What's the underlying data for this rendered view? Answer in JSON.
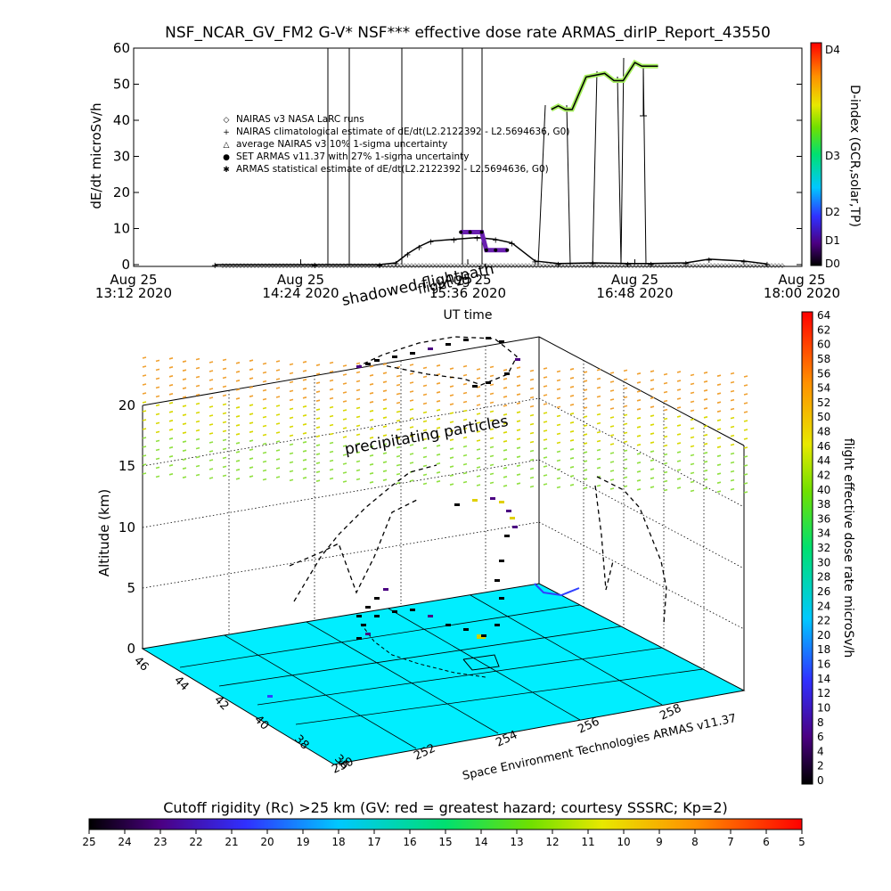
{
  "title": "NSF_NCAR_GV_FM2 G-V* NSF*** effective dose rate ARMAS_dirIP_Report_43550",
  "top_panel": {
    "ylabel": "dE/dt microSv/h",
    "xlabel": "UT time",
    "yticks": [
      "0",
      "10",
      "20",
      "30",
      "40",
      "50",
      "60"
    ],
    "xticks": [
      {
        "date": "Aug 25",
        "time": "13:12 2020"
      },
      {
        "date": "Aug 25",
        "time": "14:24 2020"
      },
      {
        "date": "Aug 25",
        "time": "15:36 2020"
      },
      {
        "date": "Aug 25",
        "time": "16:48 2020"
      },
      {
        "date": "Aug 25",
        "time": "18:00 2020"
      }
    ],
    "legend": [
      {
        "symbol": "◇",
        "text": "NAIRAS v3 NASA LaRC runs"
      },
      {
        "symbol": "+",
        "text": "NAIRAS climatological estimate of dE/dt(L2.2122392 - L2.5694636, G0)"
      },
      {
        "symbol": "△",
        "text": "average NAIRAS v3 10% 1-sigma uncertainty"
      },
      {
        "symbol": "●",
        "text": "SET ARMAS v11.37 with 27% 1-sigma uncertainty"
      },
      {
        "symbol": "✱",
        "text": "ARMAS statistical estimate of dE/dt(L2.2122392 - L2.5694636, G0)"
      }
    ],
    "dindex": {
      "label": "D-index (GCR,solar,TP)",
      "ticks": [
        "D4",
        "D3",
        "D2",
        "D1",
        "D0"
      ]
    }
  },
  "annotations": {
    "shadowed": "shadowed flightpath",
    "shadowed_overlap": "flight 25",
    "precipitating": "precipitating particles",
    "credit": "Space Environment Technologies ARMAS v11.37"
  },
  "bottom_panel": {
    "zlabel": "Altitude (km)",
    "zticks": [
      "0",
      "5",
      "10",
      "15",
      "20"
    ],
    "lat_ticks": [
      "46",
      "44",
      "42",
      "40",
      "38",
      "36"
    ],
    "lon_ticks": [
      "250",
      "252",
      "254",
      "256",
      "258"
    ],
    "colorbar_label": "flight effective dose rate microSv/h",
    "colorbar_ticks": [
      "64",
      "62",
      "60",
      "58",
      "56",
      "54",
      "52",
      "50",
      "48",
      "46",
      "44",
      "42",
      "40",
      "38",
      "36",
      "34",
      "32",
      "30",
      "28",
      "26",
      "24",
      "22",
      "20",
      "18",
      "16",
      "14",
      "12",
      "10",
      "8",
      "6",
      "4",
      "2",
      "0"
    ]
  },
  "bottom_bar": {
    "label": "Cutoff rigidity (Rc) >25 km (GV: red = greatest hazard; courtesy SSSRC; Kp=2)",
    "ticks": [
      "25",
      "24",
      "23",
      "22",
      "21",
      "20",
      "19",
      "18",
      "17",
      "16",
      "15",
      "14",
      "13",
      "12",
      "11",
      "10",
      "9",
      "8",
      "7",
      "6",
      "5"
    ]
  },
  "chart_data": [
    {
      "type": "line",
      "title": "NSF_NCAR_GV_FM2 G-V* NSF*** effective dose rate ARMAS_dirIP_Report_43550",
      "xlabel": "UT time",
      "ylabel": "dE/dt microSv/h",
      "x_range": [
        "2020-08-25 13:12",
        "2020-08-25 18:00"
      ],
      "ylim": [
        0,
        60
      ],
      "series": [
        {
          "name": "NAIRAS climatological estimate of dE/dt(L2.2122392 - L2.5694636, G0)",
          "x": [
            "13:47",
            "14:30",
            "14:58",
            "15:05",
            "15:10",
            "15:15",
            "15:20",
            "15:30",
            "15:40",
            "15:48",
            "15:55",
            "16:05",
            "16:15",
            "16:30",
            "16:45",
            "16:55",
            "17:10",
            "17:20",
            "17:35",
            "17:45"
          ],
          "values": [
            0,
            0,
            0,
            0.5,
            3,
            5,
            6.5,
            7,
            7.5,
            7,
            6,
            1,
            0.3,
            0.5,
            0.3,
            0.3,
            0.5,
            1.5,
            1,
            0.2
          ]
        },
        {
          "name": "ARMAS statistical estimate of dE/dt(L2.2122392 - L2.5694636, G0)",
          "x": [
            "16:12",
            "16:15",
            "16:18",
            "16:21",
            "16:27",
            "16:35",
            "16:39",
            "16:43",
            "16:48",
            "16:51",
            "16:56",
            "16:58"
          ],
          "values": [
            43,
            44,
            43,
            43,
            52,
            53,
            51,
            51,
            56,
            55,
            55,
            55
          ]
        },
        {
          "name": "SET ARMAS v11.37 with 27% 1-sigma uncertainty",
          "x": [
            "15:33",
            "15:37",
            "15:42",
            "15:44",
            "15:48",
            "15:53"
          ],
          "values": [
            9,
            9,
            9,
            4,
            4,
            4
          ]
        }
      ]
    },
    {
      "type": "scatter",
      "zlabel": "Altitude (km)",
      "zlim": [
        0,
        22
      ],
      "lat_range": [
        36,
        46
      ],
      "lon_range": [
        250,
        258
      ],
      "colorbar": {
        "label": "flight effective dose rate microSv/h",
        "range": [
          0,
          64
        ]
      }
    },
    {
      "type": "heatmap",
      "colorbar": {
        "label": "Cutoff rigidity (Rc) >25 km (GV: red = greatest hazard; courtesy SSSRC; Kp=2)",
        "range": [
          25,
          5
        ]
      }
    }
  ]
}
